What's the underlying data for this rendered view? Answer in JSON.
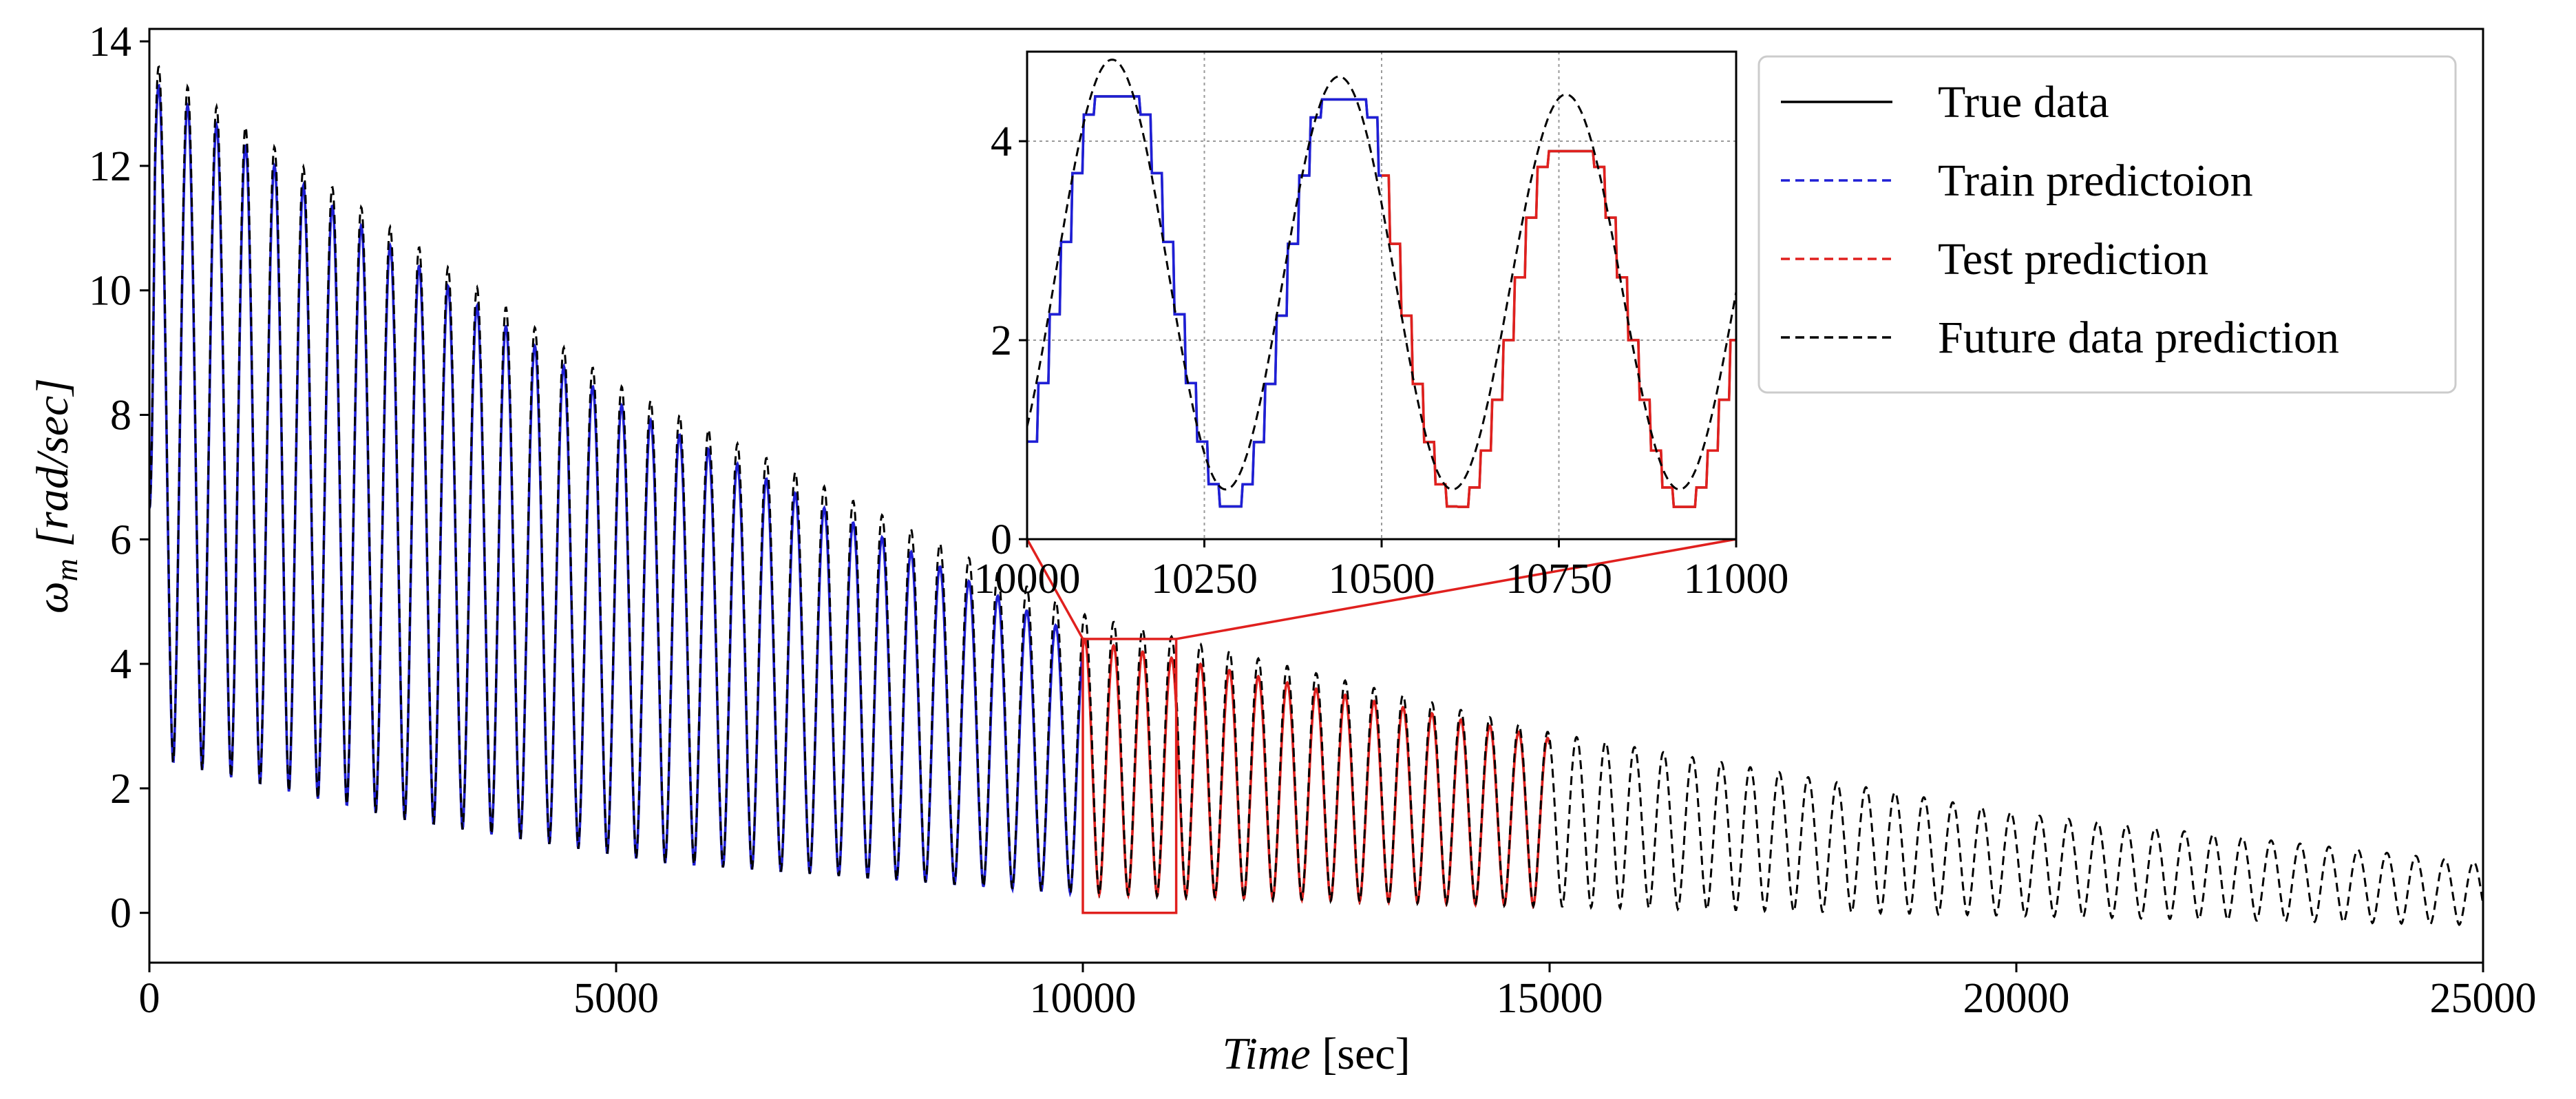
{
  "chart_data": {
    "type": "line",
    "title": "",
    "xlabel_main": "Time",
    "xlabel_unit": "[sec]",
    "ylabel_symbol": "ω",
    "ylabel_subscript": "m",
    "ylabel_unit": "[rad/sec]",
    "xlim": [
      0,
      25000
    ],
    "ylim": [
      -0.8,
      14.2
    ],
    "x_ticks": [
      0,
      5000,
      10000,
      15000,
      20000,
      25000
    ],
    "x_tick_labels": [
      "0",
      "5000",
      "10000",
      "15000",
      "20000",
      "25000"
    ],
    "y_ticks": [
      0,
      2,
      4,
      6,
      8,
      10,
      12,
      14
    ],
    "y_tick_labels": [
      "0",
      "2",
      "4",
      "6",
      "8",
      "10",
      "12",
      "14"
    ],
    "grid": false,
    "legend_position": "top-right",
    "period_sec": 310,
    "series": [
      {
        "name": "True data",
        "color": "#000000",
        "style": "solid",
        "x_range": [
          0,
          15000
        ]
      },
      {
        "name": "Train predictoion",
        "color": "#1f1fd6",
        "style": "dashed",
        "x_range": [
          0,
          10000
        ]
      },
      {
        "name": "Test prediction",
        "color": "#e0201e",
        "style": "dashed",
        "x_range": [
          10000,
          15000
        ]
      },
      {
        "name": "Future data prediction",
        "color": "#000000",
        "style": "dashed",
        "x_range": [
          0,
          25000
        ]
      }
    ],
    "peaks_true": [
      [
        0,
        13.4
      ],
      [
        5000,
        8.2
      ],
      [
        10000,
        4.4
      ],
      [
        15000,
        2.8
      ]
    ],
    "peaks_future": [
      [
        0,
        13.7
      ],
      [
        5000,
        8.5
      ],
      [
        10000,
        4.8
      ],
      [
        15000,
        2.9
      ],
      [
        20000,
        1.6
      ],
      [
        25000,
        0.8
      ]
    ],
    "troughs": [
      [
        0,
        2.5
      ],
      [
        2700,
        1.5
      ],
      [
        5500,
        0.8
      ],
      [
        10000,
        0.3
      ],
      [
        15000,
        0.1
      ],
      [
        25000,
        -0.2
      ]
    ],
    "zoom_box": {
      "x": [
        10000,
        11000
      ],
      "y": [
        0,
        4.4
      ]
    },
    "inset": {
      "xlim": [
        10000,
        11000
      ],
      "ylim": [
        0,
        4.9
      ],
      "x_ticks": [
        10000,
        10250,
        10500,
        10750,
        11000
      ],
      "x_tick_labels": [
        "10000",
        "10250",
        "10500",
        "10750",
        "11000"
      ],
      "y_ticks": [
        0,
        2,
        4
      ],
      "y_tick_labels": [
        "0",
        "2",
        "4"
      ],
      "grid": true,
      "true_peaks": [
        4.45,
        4.42,
        3.9
      ],
      "true_trough": 0.3,
      "future_peaks": [
        4.82,
        4.65,
        4.47
      ],
      "future_trough": 0.5
    }
  },
  "legend": {
    "items": [
      {
        "label": "True data",
        "color": "#000000",
        "style": "solid"
      },
      {
        "label": "Train predictoion",
        "color": "#1f1fd6",
        "style": "dashed"
      },
      {
        "label": "Test prediction",
        "color": "#e0201e",
        "style": "dashed"
      },
      {
        "label": "Future data prediction",
        "color": "#000000",
        "style": "dashed"
      }
    ]
  }
}
